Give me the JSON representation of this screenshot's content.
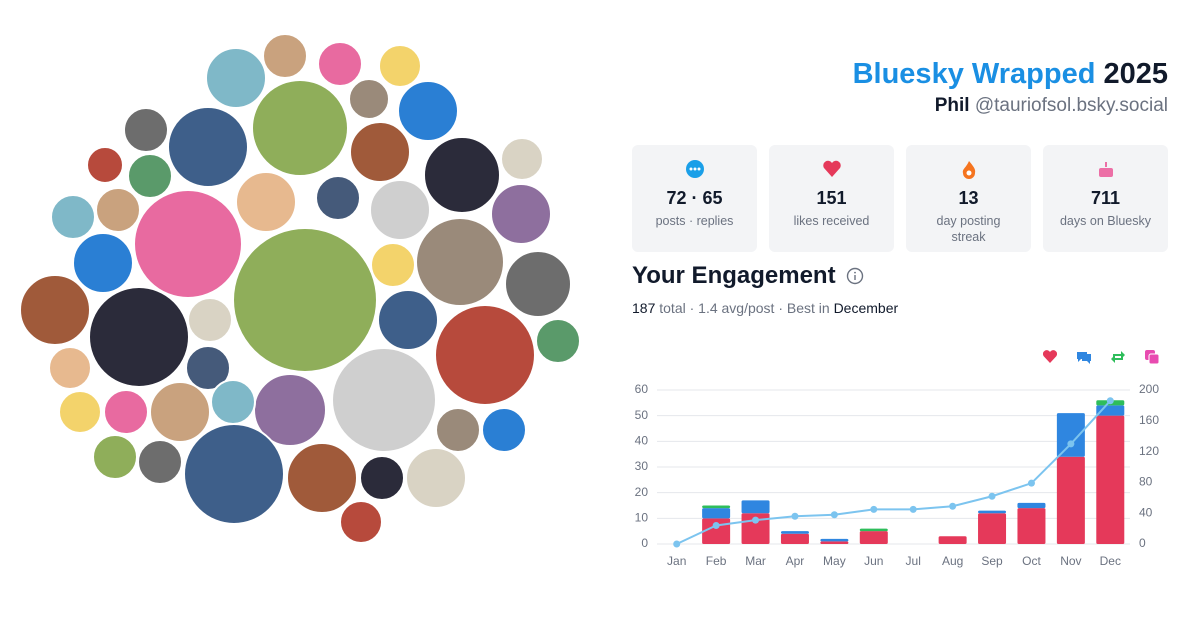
{
  "header": {
    "title": "Bluesky Wrapped",
    "year": "2025",
    "name": "Phil",
    "handle": "@tauriofsol.bsky.social"
  },
  "stats": [
    {
      "value": "72 · 65",
      "label": "posts · replies"
    },
    {
      "value": 151,
      "label": "likes received"
    },
    {
      "value": 13,
      "label": "day posting streak"
    },
    {
      "value": 711,
      "label": "days on Bluesky"
    }
  ],
  "engagement": {
    "heading": "Your Engagement",
    "total": 187,
    "summary": "total · 1.4 avg/post · Best in",
    "best": "December"
  },
  "chart_data": {
    "type": "bar",
    "stacked": true,
    "grid": true,
    "categories": [
      "Jan",
      "Feb",
      "Mar",
      "Apr",
      "May",
      "Jun",
      "Jul",
      "Aug",
      "Sep",
      "Oct",
      "Nov",
      "Dec"
    ],
    "series": [
      {
        "color": "#e5395a",
        "values": [
          0,
          10,
          12,
          4,
          1,
          5,
          0,
          3,
          12,
          14,
          34,
          50
        ]
      },
      {
        "color": "#2f86e0",
        "values": [
          0,
          4,
          5,
          1,
          1,
          0,
          0,
          0,
          1,
          2,
          17,
          4
        ]
      },
      {
        "color": "#2ebd5b",
        "values": [
          0,
          1,
          0,
          0,
          0,
          1,
          0,
          0,
          0,
          0,
          0,
          2
        ]
      },
      {
        "color": "#e84bb0",
        "values": [
          0,
          0,
          0,
          0,
          0,
          0,
          0,
          0,
          0,
          0,
          0,
          0
        ]
      },
      {
        "type": "line",
        "axis": "y2",
        "color": "#7cc4ef",
        "values": [
          0,
          24,
          31,
          36,
          38,
          45,
          45,
          49,
          62,
          79,
          130,
          186
        ]
      }
    ],
    "ylim": [
      0,
      60
    ],
    "yticks": [
      0,
      10,
      20,
      30,
      40,
      50,
      60
    ],
    "y2lim": [
      0,
      200
    ],
    "y2ticks": [
      0,
      40,
      80,
      120,
      160,
      200
    ]
  }
}
